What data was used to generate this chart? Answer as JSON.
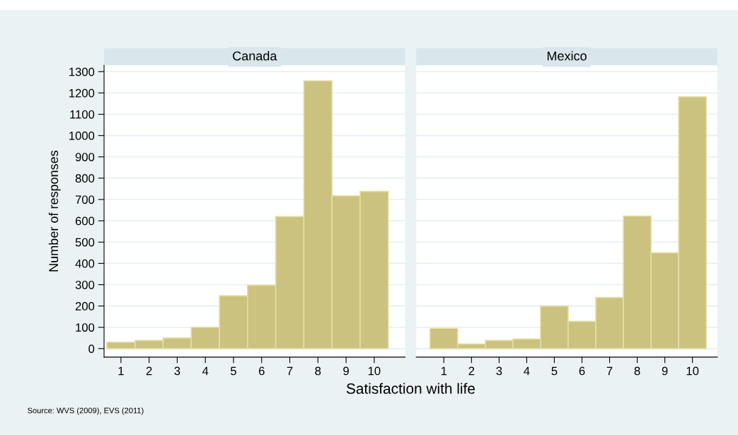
{
  "chart_data": [
    {
      "type": "histogram",
      "title": "Canada",
      "ylabel": "Number of responses",
      "xlabel": "Satisfaction with life",
      "annotations": [
        "Source: WVS (2009), EVS (2011)"
      ],
      "bins": [
        0.5,
        1.5,
        2.5,
        3.5,
        4.5,
        5.5,
        6.5,
        7.5,
        8.5,
        9.5,
        10.5
      ],
      "values": [
        30,
        38,
        50,
        100,
        248,
        298,
        620,
        1257,
        717,
        738
      ],
      "color": "#cbc27f",
      "xlim": [
        0.4,
        11.1
      ],
      "ylim": [
        -40,
        1330
      ],
      "xticks": [
        1,
        2,
        3,
        4,
        5,
        6,
        7,
        8,
        9,
        10
      ],
      "yticks": [
        0,
        100,
        200,
        300,
        400,
        500,
        600,
        700,
        800,
        900,
        1000,
        1100,
        1200,
        1300
      ],
      "grid": "y"
    },
    {
      "type": "histogram",
      "title": "Mexico",
      "bins": [
        0.5,
        1.5,
        2.5,
        3.5,
        4.5,
        5.5,
        6.5,
        7.5,
        8.5,
        9.5,
        10.5
      ],
      "values": [
        95,
        22,
        38,
        45,
        200,
        128,
        240,
        622,
        450,
        1182
      ],
      "color": "#cbc27f",
      "xlim": [
        0.0,
        10.9
      ],
      "ylim": [
        -40,
        1330
      ],
      "xticks": [
        1,
        2,
        3,
        4,
        5,
        6,
        7,
        8,
        9,
        10
      ],
      "yticks": [
        0,
        100,
        200,
        300,
        400,
        500,
        600,
        700,
        800,
        900,
        1000,
        1100,
        1200,
        1300
      ],
      "grid": "y",
      "tick_labels": "x"
    }
  ]
}
